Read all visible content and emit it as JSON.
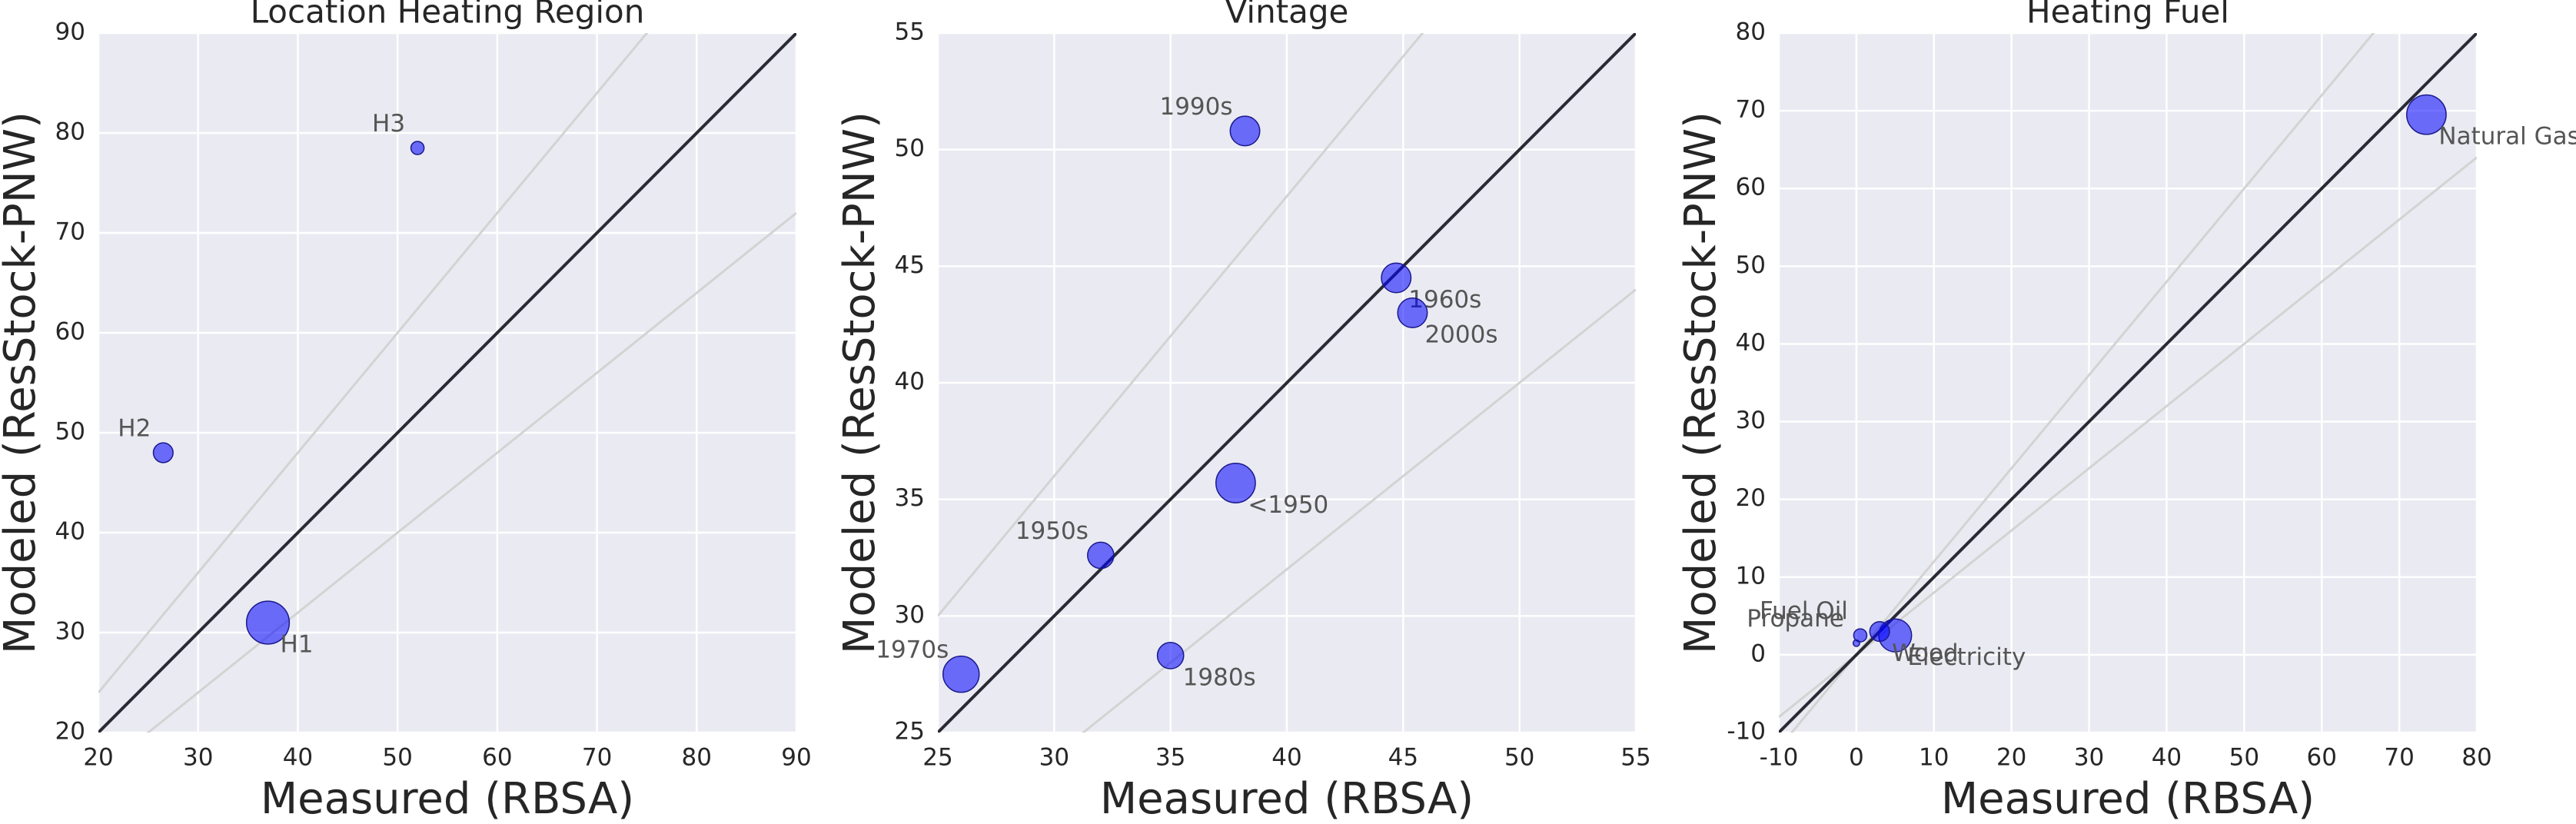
{
  "chart_data": [
    {
      "type": "scatter",
      "title": "Location Heating Region",
      "xlabel": "Measured (RBSA)",
      "ylabel": "Modeled (ResStock-PNW)",
      "xlim": [
        20,
        90
      ],
      "ylim": [
        20,
        90
      ],
      "xticks": [
        20,
        30,
        40,
        50,
        60,
        70,
        80,
        90
      ],
      "yticks": [
        20,
        30,
        40,
        50,
        60,
        70,
        80,
        90
      ],
      "grid": true,
      "color": "#0000ff",
      "reference_lines": [
        {
          "slope": 1.2,
          "color": "#d3d3d3"
        },
        {
          "slope": 0.8,
          "color": "#d3d3d3"
        },
        {
          "slope": 1,
          "color": "#2a2a35"
        }
      ],
      "point_labels": [
        "H1",
        "H2",
        "H3"
      ],
      "x": [
        37,
        26.5,
        52
      ],
      "values": [
        31,
        48,
        78.5
      ],
      "sizes": [
        170,
        36,
        16
      ]
    },
    {
      "type": "scatter",
      "title": "Vintage",
      "xlabel": "Measured (RBSA)",
      "ylabel": "Modeled (ResStock-PNW)",
      "xlim": [
        25,
        55
      ],
      "ylim": [
        25,
        55
      ],
      "xticks": [
        25,
        30,
        35,
        40,
        45,
        50,
        55
      ],
      "yticks": [
        25,
        30,
        35,
        40,
        45,
        50,
        55
      ],
      "grid": true,
      "color": "#0000ff",
      "reference_lines": [
        {
          "slope": 1.2,
          "color": "#d3d3d3"
        },
        {
          "slope": 0.8,
          "color": "#d3d3d3"
        },
        {
          "slope": 1,
          "color": "#2a2a35"
        }
      ],
      "point_labels": [
        "1990s",
        "1960s",
        "2000s",
        "<1950",
        "1950s",
        "1970s",
        "1980s"
      ],
      "x": [
        38.2,
        44.7,
        45.4,
        37.8,
        32,
        26,
        35
      ],
      "values": [
        50.8,
        44.5,
        43,
        35.7,
        32.6,
        27.5,
        28.3
      ],
      "sizes": [
        81,
        81,
        81,
        144,
        64,
        121,
        64
      ]
    },
    {
      "type": "scatter",
      "title": "Heating Fuel",
      "xlabel": "Measured (RBSA)",
      "ylabel": "Modeled (ResStock-PNW)",
      "xlim": [
        -10,
        80
      ],
      "ylim": [
        -10,
        80
      ],
      "xticks": [
        -10,
        0,
        10,
        20,
        30,
        40,
        50,
        60,
        70,
        80
      ],
      "yticks": [
        -10,
        0,
        10,
        20,
        30,
        40,
        50,
        60,
        70,
        80
      ],
      "grid": true,
      "color": "#0000ff",
      "reference_lines": [
        {
          "slope": 1.2,
          "color": "#d3d3d3"
        },
        {
          "slope": 0.8,
          "color": "#d3d3d3"
        },
        {
          "slope": 1,
          "color": "#2a2a35"
        }
      ],
      "point_labels": [
        "Natural Gas",
        "Electricity",
        "Wood",
        "Fuel Oil",
        "Propane"
      ],
      "x": [
        73.5,
        5,
        3,
        0.5,
        0
      ],
      "values": [
        69.5,
        2.5,
        3,
        2.5,
        1.5
      ],
      "sizes": [
        144,
        100,
        36,
        16,
        4
      ]
    }
  ]
}
